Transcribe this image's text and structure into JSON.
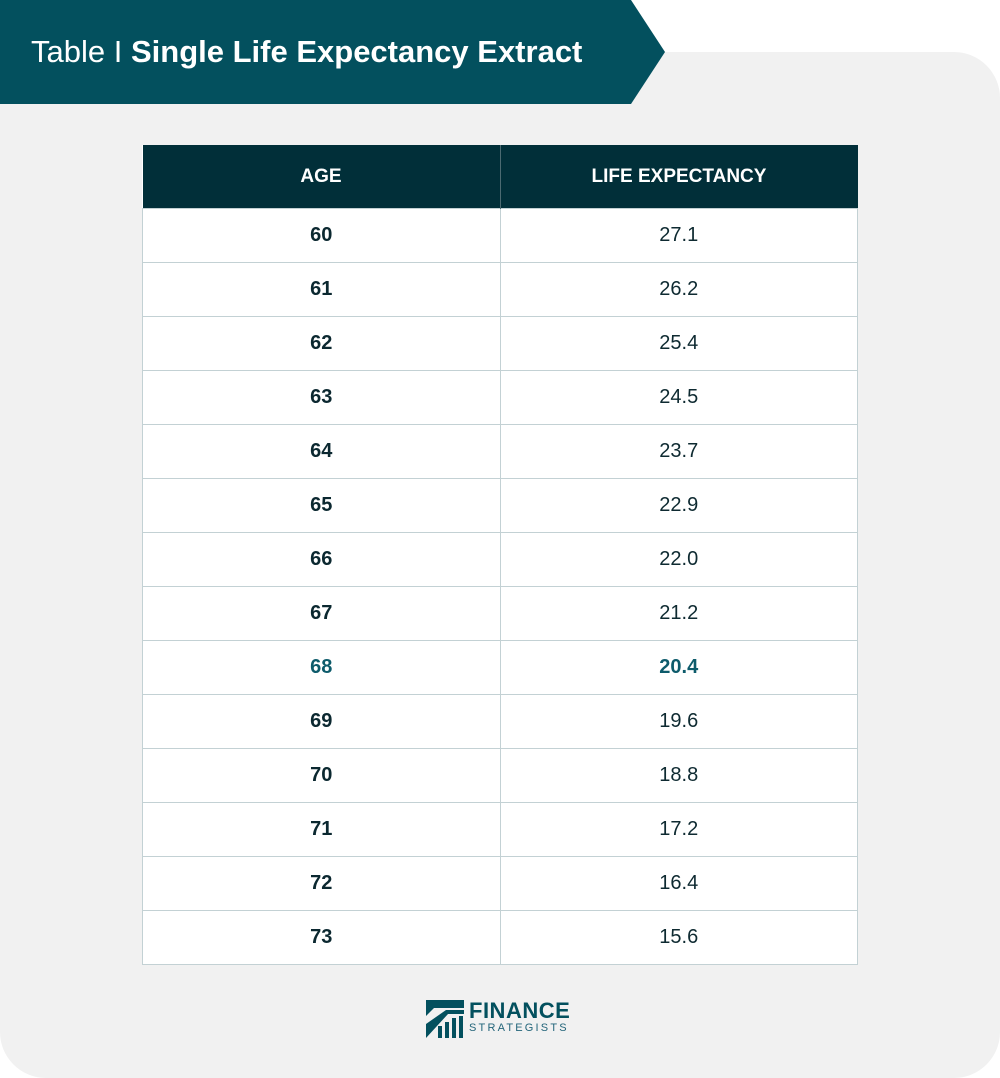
{
  "banner": {
    "prefix": "Table",
    "separator": "I",
    "title": "Single Life Expectancy Extract"
  },
  "table": {
    "columns": [
      "AGE",
      "LIFE EXPECTANCY"
    ],
    "rows": [
      {
        "age": "60",
        "life_expectancy": "27.1"
      },
      {
        "age": "61",
        "life_expectancy": "26.2"
      },
      {
        "age": "62",
        "life_expectancy": "25.4"
      },
      {
        "age": "63",
        "life_expectancy": "24.5"
      },
      {
        "age": "64",
        "life_expectancy": "23.7"
      },
      {
        "age": "65",
        "life_expectancy": "22.9"
      },
      {
        "age": "66",
        "life_expectancy": "22.0"
      },
      {
        "age": "67",
        "life_expectancy": "21.2"
      },
      {
        "age": "68",
        "life_expectancy": "20.4",
        "highlighted": true
      },
      {
        "age": "69",
        "life_expectancy": "19.6"
      },
      {
        "age": "70",
        "life_expectancy": "18.8"
      },
      {
        "age": "71",
        "life_expectancy": "17.2"
      },
      {
        "age": "72",
        "life_expectancy": "16.4"
      },
      {
        "age": "73",
        "life_expectancy": "15.6"
      }
    ]
  },
  "logo": {
    "line1": "FINANCE",
    "line2": "STRATEGISTS"
  },
  "colors": {
    "banner": "#03505e",
    "header_bg": "#012f39",
    "highlight": "#0d5b6b",
    "panel_bg": "#f1f1f1"
  }
}
